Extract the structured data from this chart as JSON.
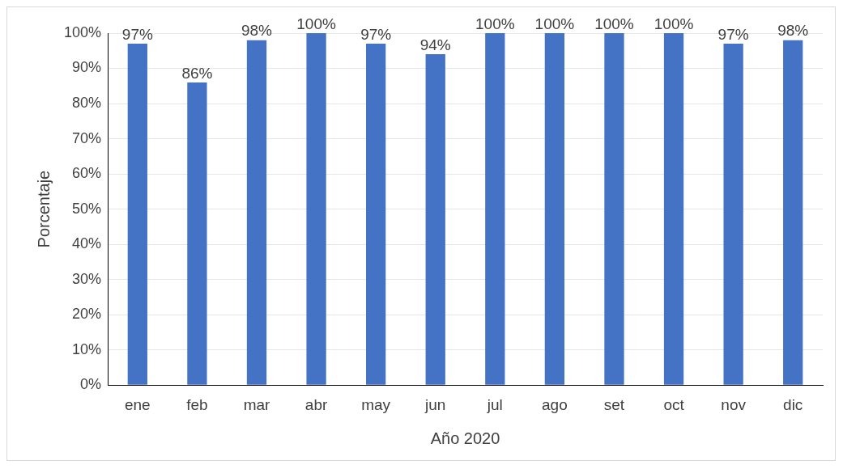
{
  "chart_data": {
    "type": "bar",
    "xlabel": "Año 2020",
    "ylabel": "Porcentaje",
    "categories": [
      "ene",
      "feb",
      "mar",
      "abr",
      "may",
      "jun",
      "jul",
      "ago",
      "set",
      "oct",
      "nov",
      "dic"
    ],
    "values": [
      97,
      86,
      98,
      100,
      97,
      94,
      100,
      100,
      100,
      100,
      97,
      98
    ],
    "value_labels": [
      "97%",
      "86%",
      "98%",
      "100%",
      "97%",
      "94%",
      "100%",
      "100%",
      "100%",
      "100%",
      "97%",
      "98%"
    ],
    "color": "#4472c4",
    "ylim": [
      0,
      100
    ],
    "yticks": [
      {
        "value": 0,
        "label": "0%"
      },
      {
        "value": 10,
        "label": "10%"
      },
      {
        "value": 20,
        "label": "20%"
      },
      {
        "value": 30,
        "label": "30%"
      },
      {
        "value": 40,
        "label": "40%"
      },
      {
        "value": 50,
        "label": "50%"
      },
      {
        "value": 60,
        "label": "60%"
      },
      {
        "value": 70,
        "label": "70%"
      },
      {
        "value": 80,
        "label": "80%"
      },
      {
        "value": 90,
        "label": "90%"
      },
      {
        "value": 100,
        "label": "100%"
      }
    ],
    "grid": "y",
    "legend": false
  }
}
